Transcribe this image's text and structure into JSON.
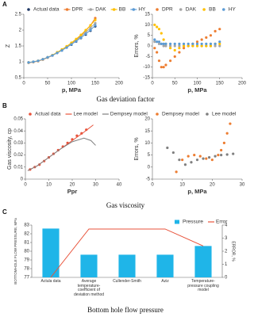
{
  "panel_labels": [
    "A",
    "B",
    "C"
  ],
  "captions": [
    "Gas deviation factor",
    "Gas viscosity",
    "Bottom hole flow pressure"
  ],
  "chart_data": [
    {
      "type": "line",
      "xlabel": "p, MPa",
      "ylabel": "Z",
      "xlim": [
        0,
        200
      ],
      "xticks": [
        0,
        50,
        100,
        150,
        200
      ],
      "ylim": [
        0.5,
        2.5
      ],
      "yticks": [
        0.5,
        1,
        1.5,
        2,
        2.5
      ],
      "x": [
        10,
        20,
        30,
        40,
        50,
        60,
        70,
        80,
        90,
        100,
        110,
        120,
        130,
        140,
        150
      ],
      "series": [
        {
          "name": "Actual data",
          "color": "#1f3864",
          "mode": "markers",
          "values": [
            0.98,
            1.0,
            1.03,
            1.08,
            1.14,
            1.2,
            1.28,
            1.36,
            1.45,
            1.54,
            1.64,
            1.75,
            1.86,
            1.98,
            2.12
          ]
        },
        {
          "name": "DPR",
          "color": "#ed7d31",
          "mode": "lines+markers",
          "values": [
            0.97,
            0.99,
            1.02,
            1.07,
            1.13,
            1.2,
            1.29,
            1.38,
            1.48,
            1.58,
            1.7,
            1.83,
            1.98,
            2.15,
            2.38
          ]
        },
        {
          "name": "DAK",
          "color": "#a5a5a5",
          "mode": "lines+markers",
          "values": [
            0.97,
            1.0,
            1.03,
            1.08,
            1.14,
            1.21,
            1.29,
            1.37,
            1.47,
            1.57,
            1.68,
            1.8,
            1.93,
            2.07,
            2.22
          ]
        },
        {
          "name": "BB",
          "color": "#ffc000",
          "mode": "lines+markers",
          "values": [
            0.98,
            1.0,
            1.03,
            1.08,
            1.14,
            1.21,
            1.3,
            1.39,
            1.49,
            1.6,
            1.72,
            1.85,
            2.0,
            2.15,
            2.32
          ]
        },
        {
          "name": "HY",
          "color": "#5b9bd5",
          "mode": "lines+markers",
          "values": [
            0.98,
            1.0,
            1.03,
            1.08,
            1.14,
            1.2,
            1.28,
            1.36,
            1.45,
            1.55,
            1.65,
            1.76,
            1.88,
            2.0,
            2.15
          ]
        }
      ]
    },
    {
      "type": "line",
      "xlabel": "p, MPa",
      "ylabel": "Errors, %",
      "xlim": [
        0,
        200
      ],
      "xticks": [
        0,
        50,
        100,
        150,
        200
      ],
      "ylim": [
        -15,
        15
      ],
      "yticks": [
        -15,
        -10,
        -5,
        0,
        5,
        10,
        15
      ],
      "x": [
        5,
        10,
        15,
        20,
        25,
        30,
        40,
        50,
        60,
        70,
        80,
        90,
        100,
        110,
        120,
        130,
        140,
        150
      ],
      "series": [
        {
          "name": "DPR",
          "color": "#ed7d31",
          "mode": "markers",
          "values": [
            -1,
            -3,
            -7,
            -10,
            -10,
            -9,
            -7,
            -5,
            -3,
            -1,
            0,
            1,
            2,
            3,
            4,
            5,
            7,
            8
          ]
        },
        {
          "name": "DAK",
          "color": "#a5a5a5",
          "mode": "markers",
          "values": [
            2,
            2,
            1,
            1,
            0,
            0,
            0,
            0,
            0,
            0,
            0,
            0,
            0,
            0,
            0,
            0,
            0,
            0
          ]
        },
        {
          "name": "BB",
          "color": "#ffc000",
          "mode": "markers",
          "values": [
            10,
            9,
            8,
            6,
            3,
            1,
            -1,
            -2,
            -1,
            0,
            0,
            0,
            0,
            0,
            0,
            0,
            1,
            1
          ]
        },
        {
          "name": "HY",
          "color": "#5b9bd5",
          "mode": "markers",
          "values": [
            3,
            2,
            2,
            1,
            1,
            1,
            1,
            1,
            1,
            1,
            1,
            1,
            1,
            1,
            1,
            1,
            1,
            2
          ]
        }
      ]
    },
    {
      "type": "line",
      "xlabel": "Ppr",
      "ylabel": "Gas viscosity, cp",
      "xlim": [
        0,
        40
      ],
      "xticks": [
        0,
        10,
        20,
        30,
        40
      ],
      "ylim": [
        0,
        0.05
      ],
      "yticks": [
        0,
        0.01,
        0.02,
        0.03,
        0.04,
        0.05
      ],
      "series": [
        {
          "name": "Actual data",
          "color": "#e8533b",
          "mode": "markers",
          "x": [
            2,
            4,
            6,
            8,
            10,
            12,
            14,
            16,
            18,
            20,
            22,
            24,
            26
          ],
          "values": [
            0.008,
            0.01,
            0.012,
            0.015,
            0.018,
            0.021,
            0.024,
            0.027,
            0.03,
            0.033,
            0.036,
            0.038,
            0.041
          ]
        },
        {
          "name": "Lee model",
          "color": "#e8533b",
          "mode": "lines",
          "x": [
            1,
            5,
            10,
            15,
            20,
            25,
            29
          ],
          "values": [
            0.007,
            0.011,
            0.018,
            0.025,
            0.032,
            0.039,
            0.045
          ]
        },
        {
          "name": "Dempsey model",
          "color": "#7f7f7f",
          "mode": "lines",
          "x": [
            1,
            5,
            10,
            15,
            20,
            25,
            28,
            30
          ],
          "values": [
            0.007,
            0.011,
            0.018,
            0.025,
            0.031,
            0.034,
            0.032,
            0.028
          ]
        }
      ]
    },
    {
      "type": "line",
      "xlabel": "p, MPa",
      "ylabel": "Errors, %",
      "xlim": [
        0,
        30
      ],
      "xticks": [
        0,
        10,
        20,
        30
      ],
      "ylim": [
        -5,
        20
      ],
      "yticks": [
        -5,
        0,
        5,
        10,
        15,
        20
      ],
      "series": [
        {
          "name": "Dempsey model",
          "color": "#ed7d31",
          "mode": "markers",
          "x": [
            8,
            10,
            12,
            14,
            16,
            18,
            20,
            22,
            23,
            24,
            25,
            26
          ],
          "values": [
            -2,
            3,
            4.5,
            5,
            4.5,
            3.5,
            3,
            5,
            7,
            10,
            14,
            18
          ]
        },
        {
          "name": "Lee model",
          "color": "#7f7f7f",
          "mode": "markers",
          "x": [
            5,
            7,
            9,
            11,
            13,
            15,
            17,
            19,
            21,
            23,
            25,
            27
          ],
          "values": [
            8,
            6,
            3,
            1,
            2,
            3,
            3.5,
            4,
            4.5,
            5,
            5.2,
            5.5
          ]
        }
      ]
    },
    {
      "type": "bar",
      "ylabel": "BOTTOMHOLE FLOW PRESSURE, MPa",
      "y2label": "ERROR, %",
      "categories": [
        "Actula data",
        "Average temperature-coefficient of deviation method",
        "Cullender-Smith",
        "Aziz",
        "Temperature-pressure coupling model"
      ],
      "ylim": [
        77,
        83
      ],
      "yticks": [
        77,
        78,
        79,
        80,
        81,
        82,
        83
      ],
      "y2lim": [
        0,
        4
      ],
      "y2ticks": [
        0,
        1,
        2,
        3,
        4
      ],
      "series": [
        {
          "name": "Pressure",
          "color": "#1fb5e8",
          "values": [
            82.6,
            79.6,
            79.6,
            79.6,
            80.6
          ]
        },
        {
          "name": "Error",
          "color": "#e8533b",
          "axis": "y2",
          "values": [
            0,
            3.7,
            3.7,
            3.7,
            2.4
          ]
        }
      ]
    }
  ]
}
